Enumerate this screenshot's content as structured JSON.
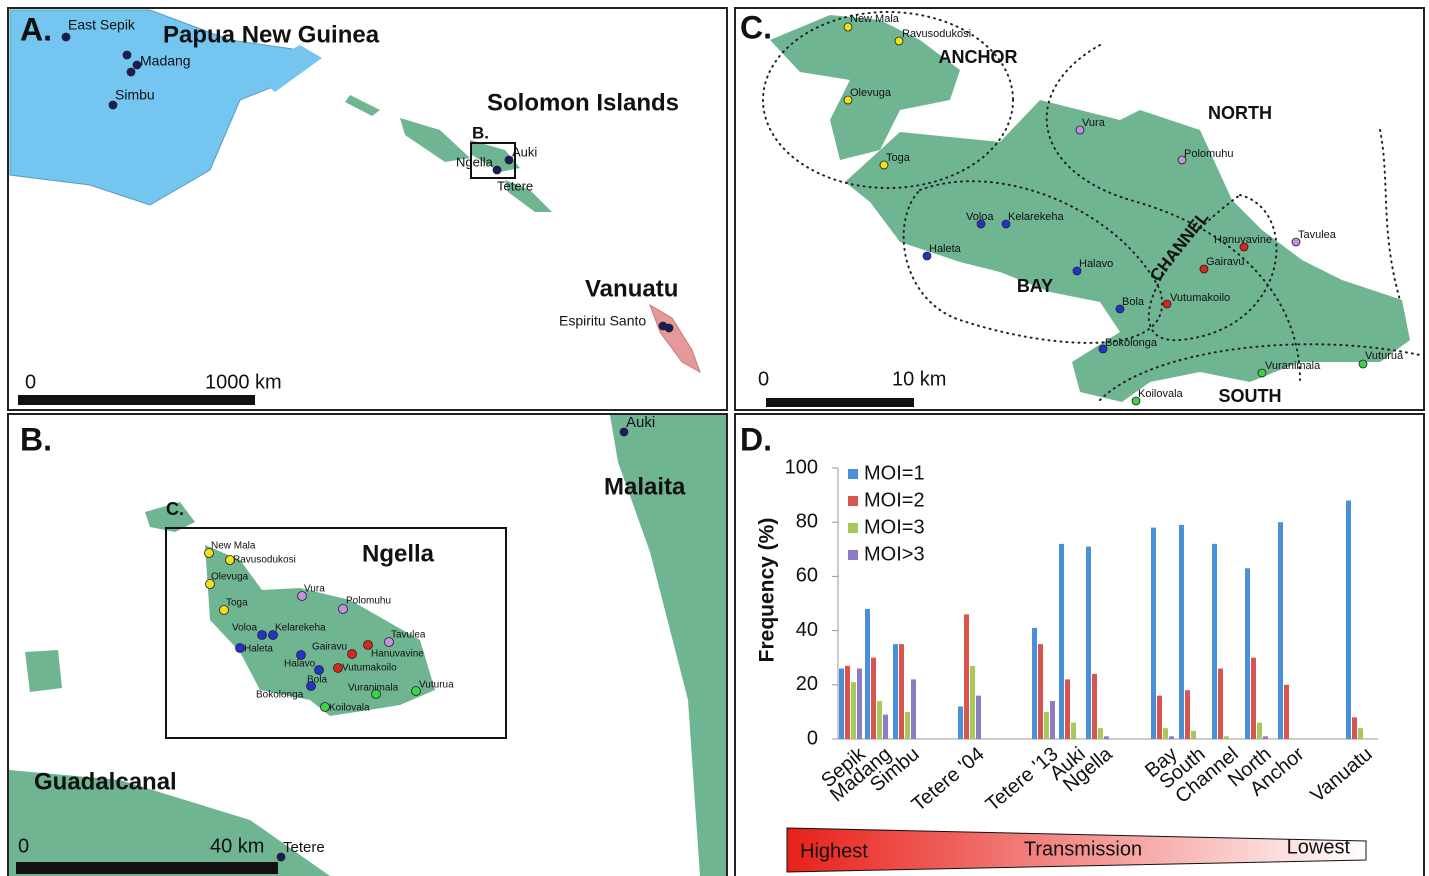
{
  "panel_a": {
    "label": "A.",
    "title_png": "Papua New Guinea",
    "title_solomon": "Solomon Islands",
    "title_vanuatu": "Vanuatu",
    "inset_label": "B.",
    "places": [
      "East Sepik",
      "Madang",
      "Simbu",
      "Ngella",
      "Auki",
      "Tetere",
      "Espiritu Santo"
    ],
    "scale": [
      "0",
      "1000 km"
    ]
  },
  "panel_b": {
    "label": "B.",
    "inset_label": "C.",
    "islands": [
      "Malaita",
      "Ngella",
      "Guadalcanal"
    ],
    "places": [
      "Auki",
      "Tetere"
    ],
    "villages": [
      "New Mala",
      "Ravusodukosi",
      "Olevuga",
      "Toga",
      "Vura",
      "Polomuhu",
      "Voloa",
      "Kelarekeha",
      "Haleta",
      "Halavo",
      "Gairavu",
      "Hanuvavine",
      "Tavulea",
      "Vutumakoilo",
      "Bola",
      "Bokolonga",
      "Vuranimala",
      "Vuturua",
      "Koilovala"
    ],
    "scale": [
      "0",
      "40 km"
    ]
  },
  "panel_c": {
    "label": "C.",
    "regions": [
      "ANCHOR",
      "NORTH",
      "CHANNEL",
      "BAY",
      "SOUTH"
    ],
    "villages": [
      "New Mala",
      "Ravusodukosi",
      "Olevuga",
      "Toga",
      "Vura",
      "Polomuhu",
      "Voloa",
      "Kelarekeha",
      "Haleta",
      "Halavo",
      "Gairavu",
      "Hanuvavine",
      "Tavulea",
      "Vutumakoilo",
      "Bola",
      "Bokolonga",
      "Vuranimala",
      "Vuturua",
      "Koilovala"
    ],
    "scale": [
      "0",
      "10 km"
    ]
  },
  "chart_data": {
    "type": "bar",
    "panel_label": "D.",
    "y_label": "Frequency (%)",
    "categories": [
      "Sepik",
      "Madang",
      "Simbu",
      "Tetere '04",
      "Tetere '13",
      "Auki",
      "Ngella",
      "Bay",
      "South",
      "Channel",
      "North",
      "Anchor",
      "Vanuatu"
    ],
    "series": [
      {
        "name": "MOI=1",
        "color": "#4a90d9",
        "values": [
          26,
          48,
          35,
          12,
          41,
          72,
          71,
          78,
          79,
          72,
          63,
          80,
          88
        ]
      },
      {
        "name": "MOI=2",
        "color": "#d9534f",
        "values": [
          27,
          30,
          35,
          46,
          35,
          22,
          24,
          16,
          18,
          26,
          30,
          20,
          8
        ]
      },
      {
        "name": "MOI=3",
        "color": "#a8c95a",
        "values": [
          21,
          14,
          10,
          27,
          10,
          6,
          4,
          4,
          3,
          1,
          6,
          0,
          4
        ]
      },
      {
        "name": "MOI>3",
        "color": "#8e7cc3",
        "values": [
          26,
          9,
          22,
          16,
          14,
          0,
          1,
          1,
          0,
          0,
          1,
          0,
          0
        ]
      }
    ],
    "ylim": [
      0,
      100
    ],
    "yticks": [
      0,
      20,
      40,
      60,
      80,
      100
    ],
    "gradient_labels": [
      "Highest",
      "Transmission",
      "Lowest"
    ]
  }
}
